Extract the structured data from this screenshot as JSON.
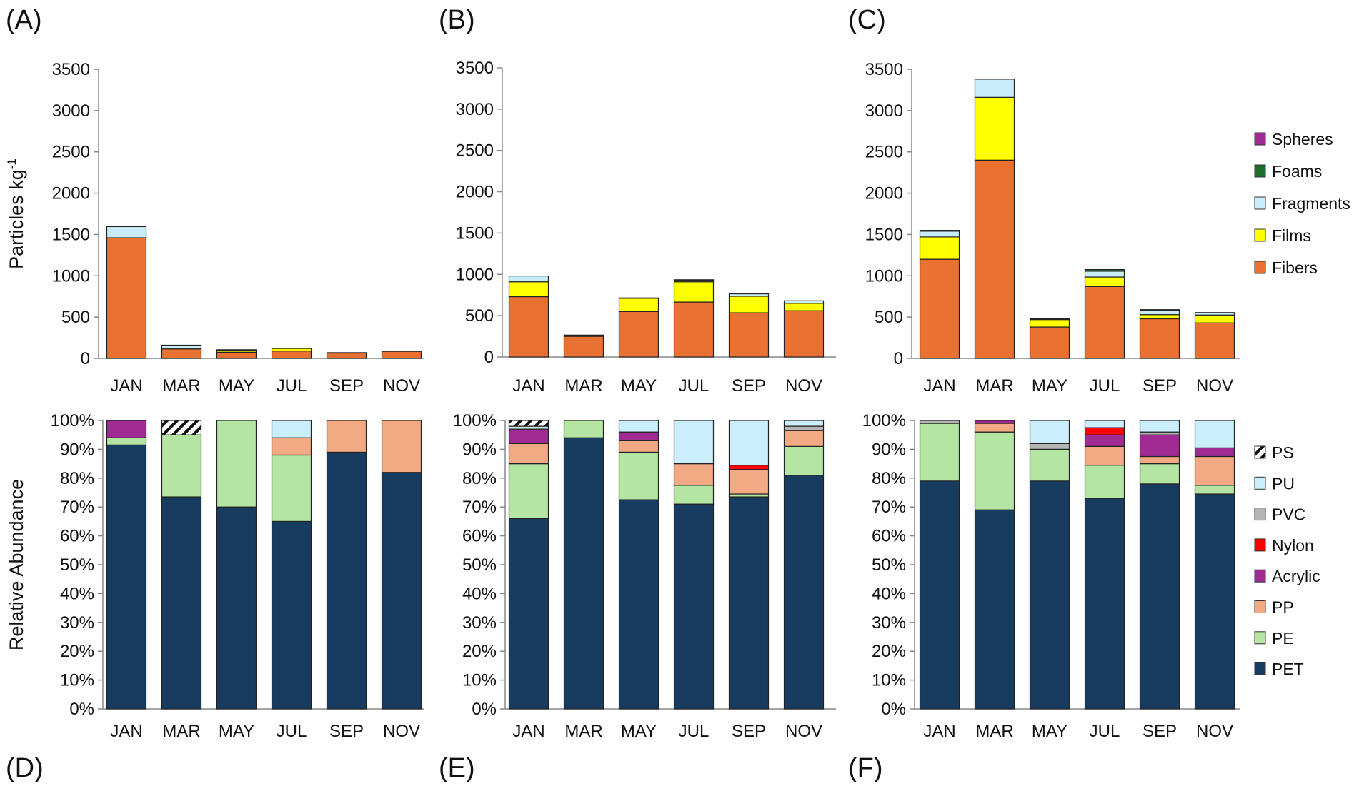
{
  "chart_data": [
    {
      "panel": "(A)",
      "type": "bar",
      "stacked": true,
      "ylabel": "Particles kg",
      "ylabel_sup": "-1",
      "ylim": [
        0,
        3500
      ],
      "yticks": [
        "0",
        "500",
        "1000",
        "1500",
        "2000",
        "2500",
        "3000",
        "3500"
      ],
      "categories": [
        "JAN",
        "MAR",
        "MAY",
        "JUL",
        "SEP",
        "NOV"
      ],
      "series": [
        {
          "name": "Fibers",
          "values": [
            1460,
            115,
            75,
            90,
            65,
            85
          ]
        },
        {
          "name": "Films",
          "values": [
            0,
            0,
            25,
            30,
            5,
            0
          ]
        },
        {
          "name": "Fragments",
          "values": [
            135,
            45,
            0,
            0,
            0,
            0
          ]
        },
        {
          "name": "Foams",
          "values": [
            0,
            0,
            5,
            0,
            0,
            0
          ]
        },
        {
          "name": "Spheres",
          "values": [
            0,
            0,
            0,
            0,
            0,
            0
          ]
        }
      ]
    },
    {
      "panel": "(B)",
      "type": "bar",
      "stacked": true,
      "ylim": [
        0,
        3500
      ],
      "yticks": [
        "0",
        "500",
        "1000",
        "1500",
        "2000",
        "2500",
        "3000",
        "3500"
      ],
      "categories": [
        "JAN",
        "MAR",
        "MAY",
        "JUL",
        "SEP",
        "NOV"
      ],
      "series": [
        {
          "name": "Fibers",
          "values": [
            730,
            250,
            550,
            665,
            535,
            560
          ]
        },
        {
          "name": "Films",
          "values": [
            180,
            5,
            160,
            245,
            200,
            90
          ]
        },
        {
          "name": "Fragments",
          "values": [
            70,
            0,
            0,
            15,
            30,
            30
          ]
        },
        {
          "name": "Foams",
          "values": [
            0,
            10,
            5,
            0,
            5,
            0
          ]
        },
        {
          "name": "Spheres",
          "values": [
            0,
            0,
            0,
            10,
            0,
            0
          ]
        }
      ]
    },
    {
      "panel": "(C)",
      "type": "bar",
      "stacked": true,
      "ylim": [
        0,
        3500
      ],
      "yticks": [
        "0",
        "500",
        "1000",
        "1500",
        "2000",
        "2500",
        "3000",
        "3500"
      ],
      "categories": [
        "JAN",
        "MAR",
        "MAY",
        "JUL",
        "SEP",
        "NOV"
      ],
      "series": [
        {
          "name": "Fibers",
          "values": [
            1200,
            2400,
            380,
            870,
            480,
            430
          ]
        },
        {
          "name": "Films",
          "values": [
            270,
            760,
            90,
            115,
            50,
            95
          ]
        },
        {
          "name": "Fragments",
          "values": [
            70,
            220,
            0,
            70,
            50,
            30
          ]
        },
        {
          "name": "Foams",
          "values": [
            10,
            0,
            10,
            20,
            10,
            0
          ]
        },
        {
          "name": "Spheres",
          "values": [
            0,
            0,
            0,
            0,
            0,
            0
          ]
        }
      ],
      "legend": [
        "Spheres",
        "Foams",
        "Fragments",
        "Films",
        "Fibers"
      ],
      "legend_position": "right"
    },
    {
      "panel": "(D)",
      "type": "bar",
      "stacked": true,
      "percent": true,
      "ylabel": "Relative Abundance",
      "ylim": [
        0,
        100
      ],
      "yticks": [
        "0%",
        "10%",
        "20%",
        "30%",
        "40%",
        "50%",
        "60%",
        "70%",
        "80%",
        "90%",
        "100%"
      ],
      "categories": [
        "JAN",
        "MAR",
        "MAY",
        "JUL",
        "SEP",
        "NOV"
      ],
      "series": [
        {
          "name": "PET",
          "values": [
            91.5,
            73.5,
            70,
            65,
            89,
            82
          ]
        },
        {
          "name": "PE",
          "values": [
            2.5,
            21.5,
            30,
            23,
            0,
            0
          ]
        },
        {
          "name": "PP",
          "values": [
            0,
            0,
            0,
            6,
            11,
            18
          ]
        },
        {
          "name": "Acrylic",
          "values": [
            6,
            0,
            0,
            0,
            0,
            0
          ]
        },
        {
          "name": "Nylon",
          "values": [
            0,
            0,
            0,
            0,
            0,
            0
          ]
        },
        {
          "name": "PVC",
          "values": [
            0,
            0,
            0,
            0,
            0,
            0
          ]
        },
        {
          "name": "PU",
          "values": [
            0,
            0,
            0,
            6,
            0,
            0
          ]
        },
        {
          "name": "PS",
          "values": [
            0,
            5,
            0,
            0,
            0,
            0
          ]
        }
      ]
    },
    {
      "panel": "(E)",
      "type": "bar",
      "stacked": true,
      "percent": true,
      "ylim": [
        0,
        100
      ],
      "yticks": [
        "0%",
        "10%",
        "20%",
        "30%",
        "40%",
        "50%",
        "60%",
        "70%",
        "80%",
        "90%",
        "100%"
      ],
      "categories": [
        "JAN",
        "MAR",
        "MAY",
        "JUL",
        "SEP",
        "NOV"
      ],
      "series": [
        {
          "name": "PET",
          "values": [
            66,
            94,
            72.5,
            71,
            73.5,
            81
          ]
        },
        {
          "name": "PE",
          "values": [
            19,
            6,
            16.5,
            6.5,
            1,
            10
          ]
        },
        {
          "name": "PP",
          "values": [
            7,
            0,
            4,
            7.5,
            8.5,
            5.5
          ]
        },
        {
          "name": "Acrylic",
          "values": [
            5,
            0,
            3,
            0,
            0,
            0
          ]
        },
        {
          "name": "Nylon",
          "values": [
            0,
            0,
            0,
            0,
            1.5,
            0
          ]
        },
        {
          "name": "PVC",
          "values": [
            0,
            0,
            0,
            0,
            0,
            1.5
          ]
        },
        {
          "name": "PU",
          "values": [
            1,
            0,
            4,
            15,
            15.5,
            2
          ]
        },
        {
          "name": "PS",
          "values": [
            2,
            0,
            0,
            0,
            0,
            0
          ]
        }
      ]
    },
    {
      "panel": "(F)",
      "type": "bar",
      "stacked": true,
      "percent": true,
      "ylim": [
        0,
        100
      ],
      "yticks": [
        "0%",
        "10%",
        "20%",
        "30%",
        "40%",
        "50%",
        "60%",
        "70%",
        "80%",
        "90%",
        "100%"
      ],
      "categories": [
        "JAN",
        "MAR",
        "MAY",
        "JUL",
        "SEP",
        "NOV"
      ],
      "series": [
        {
          "name": "PET",
          "values": [
            79,
            69,
            79,
            73,
            78,
            74.5
          ]
        },
        {
          "name": "PE",
          "values": [
            20,
            27,
            11,
            11.5,
            7,
            3
          ]
        },
        {
          "name": "PP",
          "values": [
            0,
            3,
            0,
            6.5,
            2.5,
            10
          ]
        },
        {
          "name": "Acrylic",
          "values": [
            0,
            1,
            0,
            4,
            7.5,
            3
          ]
        },
        {
          "name": "Nylon",
          "values": [
            0,
            0,
            0,
            2.5,
            0,
            0
          ]
        },
        {
          "name": "PVC",
          "values": [
            1,
            0,
            2,
            0,
            1,
            0
          ]
        },
        {
          "name": "PU",
          "values": [
            0,
            0,
            8,
            2.5,
            4,
            9.5
          ]
        },
        {
          "name": "PS",
          "values": [
            0,
            0,
            0,
            0,
            0,
            0
          ]
        }
      ],
      "legend": [
        "PS",
        "PU",
        "PVC",
        "Nylon",
        "Acrylic",
        "PP",
        "PE",
        "PET"
      ],
      "legend_position": "right"
    }
  ],
  "colors": {
    "Fibers": "#E97132",
    "Films": "#FFFF00",
    "Fragments": "#C8ECF9",
    "Foams": "#1F6E2C",
    "Spheres": "#A02B93",
    "PET": "#173C60",
    "PE": "#B4E5A2",
    "PP": "#F2AA84",
    "Acrylic": "#A02B93",
    "Nylon": "#FF0000",
    "PVC": "#B5B5B5",
    "PU": "#CAEEFB",
    "PS": "hatch"
  }
}
